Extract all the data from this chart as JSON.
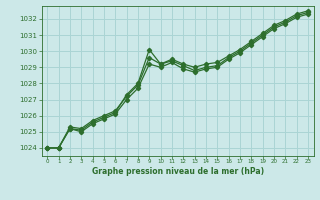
{
  "xlabel": "Graphe pression niveau de la mer (hPa)",
  "bg_color": "#cce8e8",
  "grid_color": "#aad4d4",
  "line_color": "#2d6e2d",
  "marker": "D",
  "markersize": 2.2,
  "linewidth": 0.9,
  "ylim": [
    1023.5,
    1032.8
  ],
  "xlim": [
    -0.5,
    23.5
  ],
  "yticks": [
    1024,
    1025,
    1026,
    1027,
    1028,
    1029,
    1030,
    1031,
    1032
  ],
  "xticks": [
    0,
    1,
    2,
    3,
    4,
    5,
    6,
    7,
    8,
    9,
    10,
    11,
    12,
    13,
    14,
    15,
    16,
    17,
    18,
    19,
    20,
    21,
    22,
    23
  ],
  "series": [
    [
      1024.0,
      1024.0,
      1025.2,
      1025.1,
      1025.6,
      1025.9,
      1026.2,
      1027.3,
      1028.0,
      1030.1,
      1029.2,
      1029.4,
      1029.1,
      1028.8,
      1029.0,
      1029.1,
      1029.6,
      1030.0,
      1030.5,
      1031.0,
      1031.5,
      1031.8,
      1032.2,
      1032.4
    ],
    [
      1024.0,
      1024.0,
      1025.3,
      1025.2,
      1025.7,
      1026.0,
      1026.3,
      1027.2,
      1027.9,
      1029.6,
      1029.2,
      1029.5,
      1029.2,
      1029.0,
      1029.2,
      1029.3,
      1029.7,
      1030.1,
      1030.6,
      1031.1,
      1031.6,
      1031.9,
      1032.3,
      1032.5
    ],
    [
      1024.0,
      1024.0,
      1025.2,
      1025.0,
      1025.5,
      1025.8,
      1026.1,
      1027.0,
      1027.7,
      1029.2,
      1029.0,
      1029.3,
      1028.9,
      1028.7,
      1028.9,
      1029.0,
      1029.5,
      1029.9,
      1030.4,
      1030.9,
      1031.4,
      1031.7,
      1032.1,
      1032.3
    ]
  ]
}
